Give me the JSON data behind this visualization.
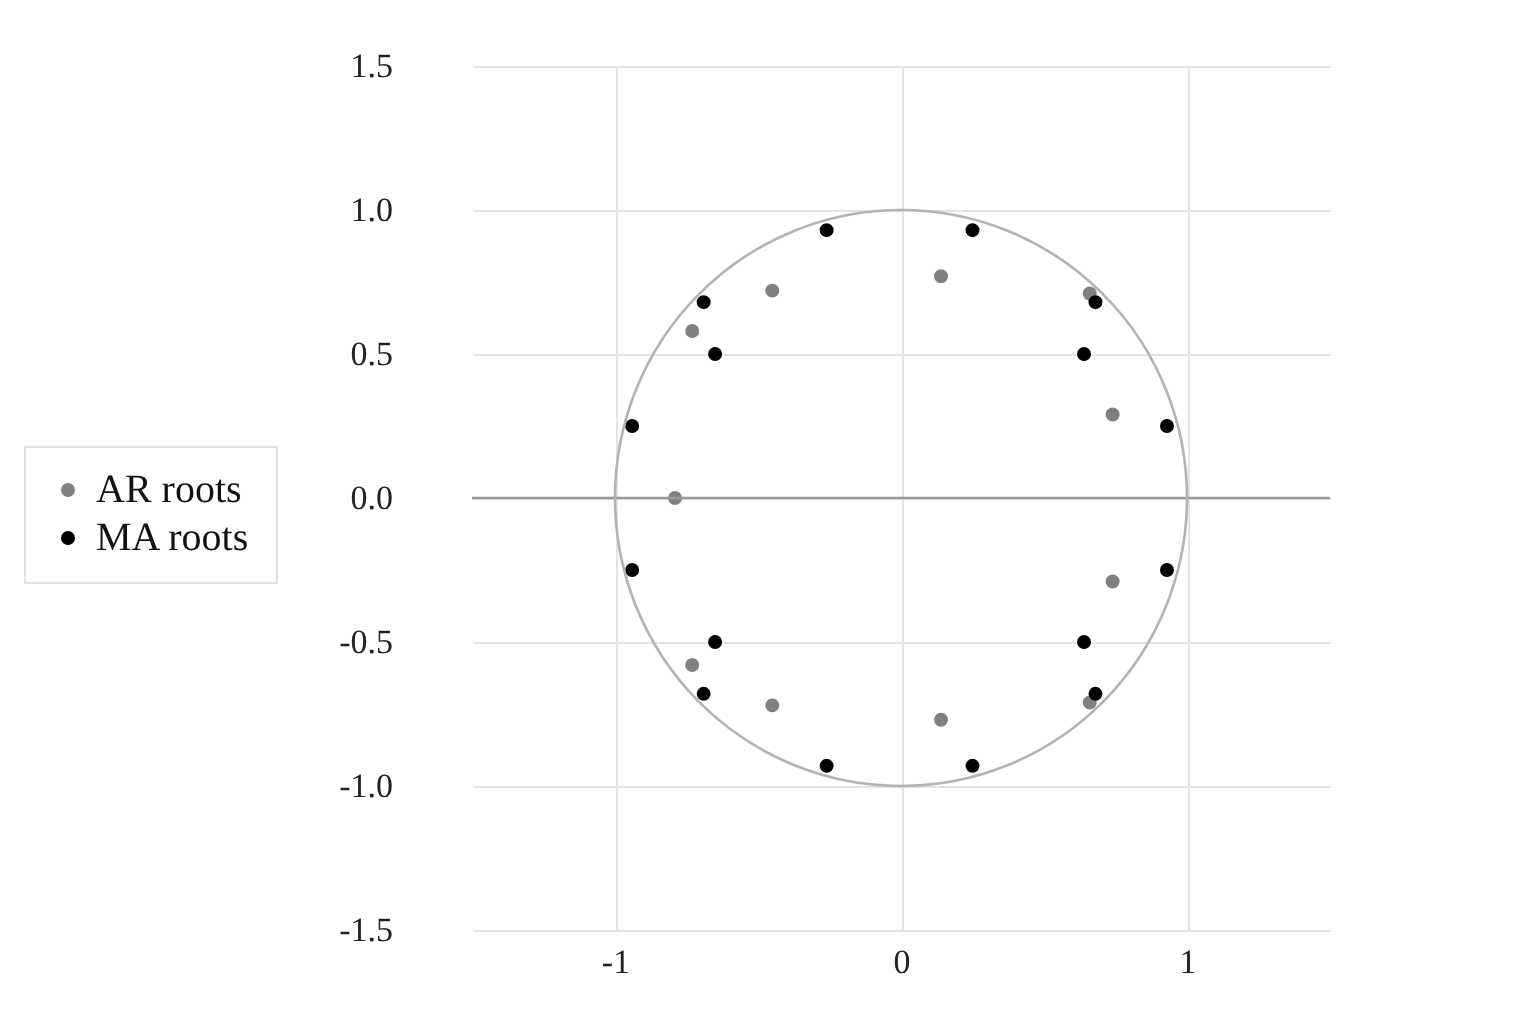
{
  "chart_data": {
    "type": "scatter",
    "xlim": [
      -1.5,
      1.5
    ],
    "ylim": [
      -1.5,
      1.5
    ],
    "xticks": [
      -1,
      0,
      1
    ],
    "yticks": [
      {
        "value": -1.5,
        "label": "-1.5"
      },
      {
        "value": -1,
        "label": "-1.0"
      },
      {
        "value": -0.5,
        "label": "-0.5"
      },
      {
        "value": 0,
        "label": "0.0"
      },
      {
        "value": 0.5,
        "label": "0.5"
      },
      {
        "value": 1,
        "label": "1.0"
      },
      {
        "value": 1.5,
        "label": "1.5"
      }
    ],
    "grid": true,
    "legend": "left",
    "marker": "circle",
    "ref_lines": [
      {
        "axis": "y",
        "value": 0,
        "color": "#999999"
      }
    ],
    "series": [
      {
        "name": "AR roots",
        "color": "#808080",
        "x": [
          -0.45,
          -0.73,
          -0.79,
          -0.73,
          -0.45,
          0.14,
          0.66,
          0.74,
          0.74,
          0.66,
          0.14
        ],
        "values": [
          0.72,
          0.58,
          0,
          -0.58,
          -0.72,
          0.77,
          0.71,
          0.29,
          -0.29,
          -0.71,
          -0.77
        ]
      },
      {
        "name": "MA roots",
        "color": "#000000",
        "x": [
          -0.26,
          -0.69,
          -0.65,
          -0.94,
          -0.94,
          -0.65,
          -0.69,
          -0.26,
          0.25,
          0.68,
          0.64,
          0.93,
          0.93,
          0.64,
          0.68,
          0.25
        ],
        "values": [
          0.93,
          0.68,
          0.5,
          0.25,
          -0.25,
          -0.5,
          -0.68,
          -0.93,
          0.93,
          0.68,
          0.5,
          0.25,
          -0.25,
          -0.5,
          -0.68,
          -0.93
        ]
      }
    ]
  }
}
